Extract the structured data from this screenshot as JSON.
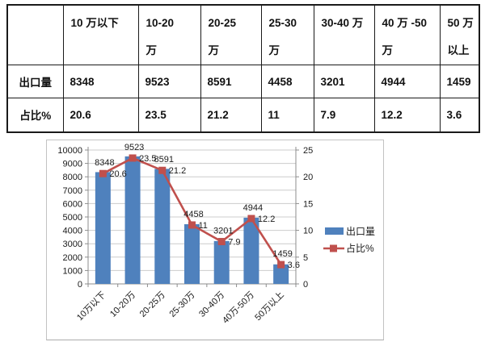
{
  "table": {
    "col_headers": [
      "",
      "10 万以下",
      "10-20\n万",
      "20-25\n万",
      "25-30\n万",
      "30-40 万",
      "40 万 -50\n万",
      "50 万\n以上"
    ],
    "rows": [
      {
        "label": "出口量",
        "values": [
          "8348",
          "9523",
          "8591",
          "4458",
          "3201",
          "4944",
          "1459"
        ]
      },
      {
        "label": "占比%",
        "values": [
          "20.6",
          "23.5",
          "21.2",
          "11",
          "7.9",
          "12.2",
          "3.6"
        ]
      }
    ]
  },
  "chart_data": {
    "type": "bar",
    "subtype": "combo-bar-line-dual-axis",
    "categories": [
      "10万以下",
      "10-20万",
      "20-25万",
      "25-30万",
      "30-40万",
      "40万-50万",
      "50万以上"
    ],
    "series": [
      {
        "name": "出口量",
        "type": "bar",
        "axis": "left",
        "color": "#4F81BD",
        "values": [
          8348,
          9523,
          8591,
          4458,
          3201,
          4944,
          1459
        ]
      },
      {
        "name": "占比%",
        "type": "line",
        "axis": "right",
        "color": "#C0504D",
        "marker": "square",
        "values": [
          20.6,
          23.5,
          21.2,
          11,
          7.9,
          12.2,
          3.6
        ]
      }
    ],
    "left_axis": {
      "min": 0,
      "max": 10000,
      "step": 1000
    },
    "right_axis": {
      "min": 0,
      "max": 25,
      "step": 5
    },
    "grid": true,
    "data_labels": true,
    "legend_position": "right",
    "colors": {
      "gridline": "#cccccc",
      "axis_line": "#8c8c8c",
      "label_text": "#1a1a1a"
    }
  }
}
